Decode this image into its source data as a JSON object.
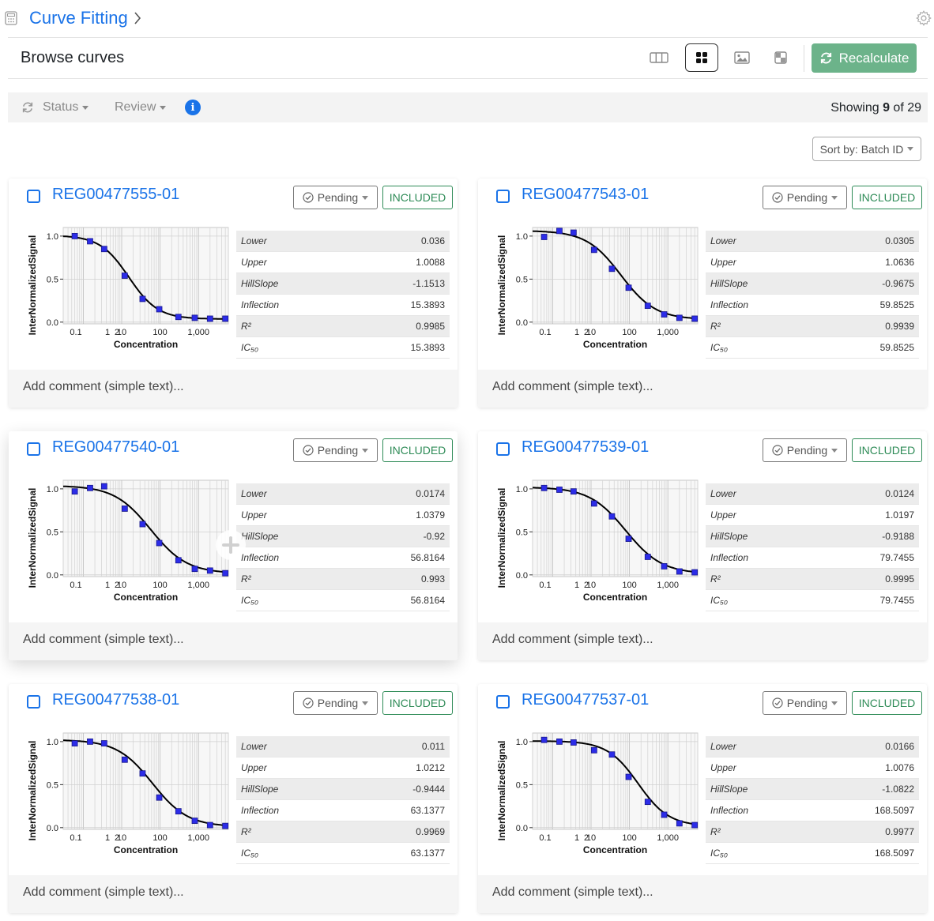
{
  "app": {
    "title": "Curve Fitting"
  },
  "header": {
    "title": "Browse curves",
    "recalculate_label": "Recalculate"
  },
  "filters": {
    "status_label": "Status",
    "review_label": "Review",
    "info_label": "i"
  },
  "showing": {
    "prefix": "Showing ",
    "count": "9",
    "middle": " of ",
    "total": "29"
  },
  "sort": {
    "label": "Sort by: Batch ID"
  },
  "stat_labels": [
    "Lower",
    "Upper",
    "HillSlope",
    "Inflection",
    "R²",
    "IC₅₀"
  ],
  "chart_axis": {
    "ylabel": "InterNormalizedSignal",
    "xlabel": "Concentration",
    "xticks": [
      "0.1",
      "1",
      "2",
      "10",
      "100",
      "1,000"
    ],
    "yticks": [
      "1.0",
      "0.5",
      "0.0"
    ]
  },
  "cards": [
    {
      "id": "REG00477555-01",
      "status": "Pending",
      "inclusion": "INCLUDED",
      "comment_placeholder": "Add comment (simple text)...",
      "stats": [
        "0.036",
        "1.0088",
        "-1.1513",
        "15.3893",
        "0.9985",
        "15.3893"
      ],
      "fit": {
        "lower": 0.036,
        "upper": 1.0088,
        "hill": -1.1513,
        "ic50": 15.3893
      },
      "points": [
        [
          0.6,
          1.0
        ],
        [
          1.5,
          0.94
        ],
        [
          3.5,
          0.85
        ],
        [
          12,
          0.54
        ],
        [
          35,
          0.27
        ],
        [
          95,
          0.15
        ],
        [
          300,
          0.06
        ],
        [
          800,
          0.05
        ],
        [
          2000,
          0.04
        ],
        [
          5000,
          0.04
        ]
      ]
    },
    {
      "id": "REG00477543-01",
      "status": "Pending",
      "inclusion": "INCLUDED",
      "comment_placeholder": "Add comment (simple text)...",
      "stats": [
        "0.0305",
        "1.0636",
        "-0.9675",
        "59.8525",
        "0.9939",
        "59.8525"
      ],
      "fit": {
        "lower": 0.0305,
        "upper": 1.0636,
        "hill": -0.9675,
        "ic50": 59.8525
      },
      "points": [
        [
          0.6,
          0.99
        ],
        [
          1.5,
          1.06
        ],
        [
          3.5,
          1.04
        ],
        [
          12,
          0.84
        ],
        [
          35,
          0.62
        ],
        [
          95,
          0.4
        ],
        [
          300,
          0.19
        ],
        [
          800,
          0.09
        ],
        [
          2000,
          0.05
        ],
        [
          5000,
          0.04
        ]
      ]
    },
    {
      "id": "REG00477540-01",
      "status": "Pending",
      "inclusion": "INCLUDED",
      "comment_placeholder": "Add comment (simple text)...",
      "stats": [
        "0.0174",
        "1.0379",
        "-0.92",
        "56.8164",
        "0.993",
        "56.8164"
      ],
      "fit": {
        "lower": 0.0174,
        "upper": 1.0379,
        "hill": -0.92,
        "ic50": 56.8164
      },
      "points": [
        [
          0.6,
          0.97
        ],
        [
          1.5,
          1.01
        ],
        [
          3.5,
          1.03
        ],
        [
          12,
          0.77
        ],
        [
          35,
          0.59
        ],
        [
          95,
          0.37
        ],
        [
          300,
          0.17
        ],
        [
          800,
          0.07
        ],
        [
          2000,
          0.05
        ],
        [
          5000,
          0.02
        ]
      ]
    },
    {
      "id": "REG00477539-01",
      "status": "Pending",
      "inclusion": "INCLUDED",
      "comment_placeholder": "Add comment (simple text)...",
      "stats": [
        "0.0124",
        "1.0197",
        "-0.9188",
        "79.7455",
        "0.9995",
        "79.7455"
      ],
      "fit": {
        "lower": 0.0124,
        "upper": 1.0197,
        "hill": -0.9188,
        "ic50": 79.7455
      },
      "points": [
        [
          0.6,
          1.01
        ],
        [
          1.5,
          0.99
        ],
        [
          3.5,
          0.97
        ],
        [
          12,
          0.83
        ],
        [
          35,
          0.68
        ],
        [
          95,
          0.42
        ],
        [
          300,
          0.21
        ],
        [
          800,
          0.1
        ],
        [
          2000,
          0.04
        ],
        [
          5000,
          0.03
        ]
      ]
    },
    {
      "id": "REG00477538-01",
      "status": "Pending",
      "inclusion": "INCLUDED",
      "comment_placeholder": "Add comment (simple text)...",
      "stats": [
        "0.011",
        "1.0212",
        "-0.9444",
        "63.1377",
        "0.9969",
        "63.1377"
      ],
      "fit": {
        "lower": 0.011,
        "upper": 1.0212,
        "hill": -0.9444,
        "ic50": 63.1377
      },
      "points": [
        [
          0.6,
          0.98
        ],
        [
          1.5,
          1.0
        ],
        [
          3.5,
          0.98
        ],
        [
          12,
          0.79
        ],
        [
          35,
          0.63
        ],
        [
          95,
          0.35
        ],
        [
          300,
          0.19
        ],
        [
          800,
          0.08
        ],
        [
          2000,
          0.03
        ],
        [
          5000,
          0.02
        ]
      ]
    },
    {
      "id": "REG00477537-01",
      "status": "Pending",
      "inclusion": "INCLUDED",
      "comment_placeholder": "Add comment (simple text)...",
      "stats": [
        "0.0166",
        "1.0076",
        "-1.0822",
        "168.5097",
        "0.9977",
        "168.5097"
      ],
      "fit": {
        "lower": 0.0166,
        "upper": 1.0076,
        "hill": -1.0822,
        "ic50": 168.5097
      },
      "points": [
        [
          0.6,
          1.02
        ],
        [
          1.5,
          1.0
        ],
        [
          3.5,
          0.99
        ],
        [
          12,
          0.9
        ],
        [
          35,
          0.85
        ],
        [
          95,
          0.59
        ],
        [
          300,
          0.3
        ],
        [
          800,
          0.15
        ],
        [
          2000,
          0.05
        ],
        [
          5000,
          0.03
        ]
      ]
    }
  ]
}
